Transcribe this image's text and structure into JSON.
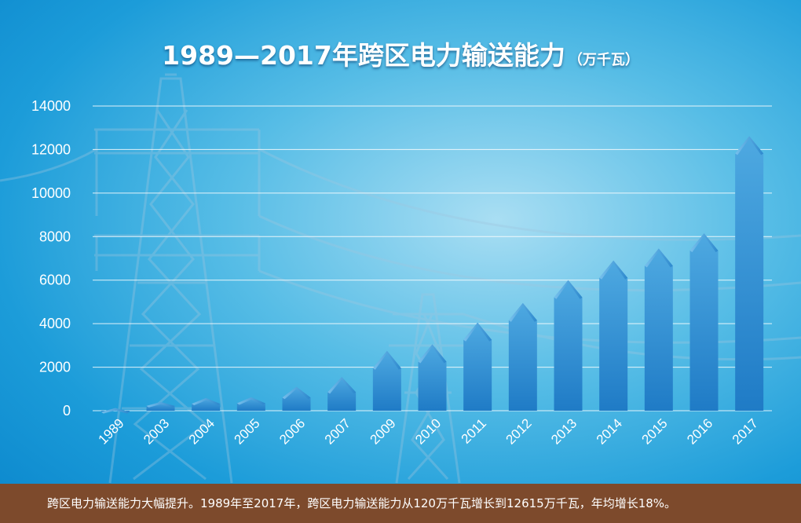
{
  "title": "1989—2017年跨区电力输送能力",
  "unit": "（万千瓦）",
  "footer_text": "跨区电力输送能力大幅提升。1989年至2017年，跨区电力输送能力从120万千瓦增长到12615万千瓦，年均增长18%。",
  "colors": {
    "bar_top": "#4aa8e0",
    "bar_bottom": "#1d78c4",
    "grid": "#ffffff",
    "footer_bg": "#7d4a2c"
  },
  "chart_data": {
    "type": "bar",
    "title": "1989—2017年跨区电力输送能力（万千瓦）",
    "xlabel": "",
    "ylabel": "",
    "categories": [
      "1989",
      "2003",
      "2004",
      "2005",
      "2006",
      "2007",
      "2009",
      "2010",
      "2011",
      "2012",
      "2013",
      "2014",
      "2015",
      "2016",
      "2017"
    ],
    "values": [
      120,
      400,
      580,
      620,
      1100,
      1550,
      2750,
      3050,
      4050,
      4950,
      6000,
      6900,
      7450,
      8150,
      12615
    ],
    "ylim": [
      0,
      14000
    ],
    "yticks": [
      "0",
      "2000",
      "4000",
      "6000",
      "8000",
      "10000",
      "12000",
      "14000"
    ],
    "grid": true,
    "legend": "none"
  }
}
